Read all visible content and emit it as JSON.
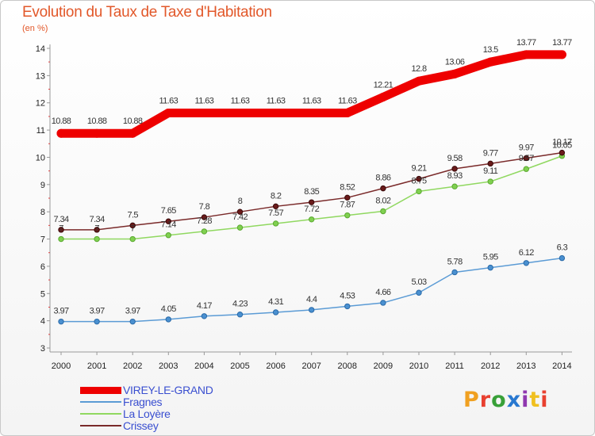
{
  "header": {
    "title": "Evolution du Taux de Taxe d'Habitation",
    "subtitle": "(en %)"
  },
  "logo": {
    "text": "Proxiti",
    "colors": [
      "#f0a020",
      "#e84030",
      "#38a038",
      "#2878d0",
      "#9038b0",
      "#f0c020",
      "#e84030"
    ]
  },
  "chart_data": {
    "type": "line",
    "title": "Evolution du Taux de Taxe d'Habitation",
    "ylabel": "(en %)",
    "xlabel": "",
    "ylim": [
      3,
      14
    ],
    "yticks": [
      "3",
      "4",
      "5",
      "6",
      "7",
      "8",
      "9",
      "10",
      "11",
      "12",
      "13",
      "14"
    ],
    "grid": false,
    "legend": "bottom-left",
    "categories": [
      "2000",
      "2001",
      "2002",
      "2003",
      "2004",
      "2005",
      "2006",
      "2007",
      "2008",
      "2009",
      "2010",
      "2011",
      "2012",
      "2013",
      "2014"
    ],
    "series": [
      {
        "name": "VIREY-LE-GRAND",
        "color": "#ee0000",
        "values": [
          10.88,
          10.88,
          10.88,
          11.63,
          11.63,
          11.63,
          11.63,
          11.63,
          11.63,
          12.21,
          12.8,
          13.06,
          13.5,
          13.77,
          13.77
        ],
        "labels": [
          "10.88",
          "10.88",
          "10.88",
          "11.63",
          "11.63",
          "11.63",
          "11.63",
          "11.63",
          "11.63",
          "12.21",
          "12.8",
          "13.06",
          "13.5",
          "13.77",
          "13.77"
        ]
      },
      {
        "name": "Fragnes",
        "color": "#5b9bd5",
        "values": [
          3.97,
          3.97,
          3.97,
          4.05,
          4.17,
          4.23,
          4.31,
          4.4,
          4.53,
          4.66,
          5.03,
          5.78,
          5.95,
          6.12,
          6.3
        ],
        "labels": [
          "3.97",
          "3.97",
          "3.97",
          "4.05",
          "4.17",
          "4.23",
          "4.31",
          "4.4",
          "4.53",
          "4.66",
          "5.03",
          "5.78",
          "5.95",
          "6.12",
          "6.3"
        ]
      },
      {
        "name": "La Loyère",
        "color": "#90d860",
        "values": [
          7,
          7,
          7,
          7.14,
          7.28,
          7.42,
          7.57,
          7.72,
          7.87,
          8.02,
          8.75,
          8.93,
          9.11,
          9.57,
          10.05
        ],
        "labels": [
          "7",
          "7",
          "7",
          "7.14",
          "7.28",
          "7.42",
          "7.57",
          "7.72",
          "7.87",
          "8.02",
          "8.75",
          "8.93",
          "9.11",
          "9.57",
          "10.05"
        ]
      },
      {
        "name": "Crissey",
        "color": "#7a2a2a",
        "values": [
          7.34,
          7.34,
          7.5,
          7.65,
          7.8,
          8,
          8.2,
          8.35,
          8.52,
          8.86,
          9.21,
          9.58,
          9.77,
          9.97,
          10.17
        ],
        "labels": [
          "7.34",
          "7.34",
          "7.5",
          "7.65",
          "7.8",
          "8",
          "8.2",
          "8.35",
          "8.52",
          "8.86",
          "9.21",
          "9.58",
          "9.77",
          "9.97",
          "10.17"
        ]
      }
    ]
  }
}
